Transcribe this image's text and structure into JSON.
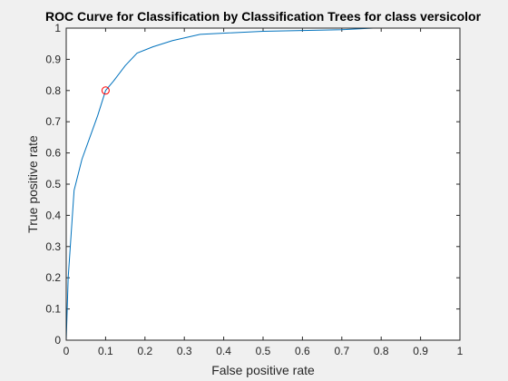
{
  "chart_data": {
    "type": "line",
    "title": "ROC Curve for Classification by Classification Trees for class versicolor",
    "xlabel": "False positive rate",
    "ylabel": "True positive rate",
    "xlim": [
      0,
      1
    ],
    "ylim": [
      0,
      1
    ],
    "xticks": [
      "0",
      "0.1",
      "0.2",
      "0.3",
      "0.4",
      "0.5",
      "0.6",
      "0.7",
      "0.8",
      "0.9",
      "1"
    ],
    "yticks": [
      "0",
      "0.1",
      "0.2",
      "0.3",
      "0.4",
      "0.5",
      "0.6",
      "0.7",
      "0.8",
      "0.9",
      "1"
    ],
    "grid": false,
    "series": [
      {
        "color": "#0072bd",
        "x": [
          0,
          0.005,
          0.02,
          0.04,
          0.06,
          0.08,
          0.1,
          0.12,
          0.15,
          0.18,
          0.22,
          0.27,
          0.34,
          0.5,
          0.7,
          0.78,
          1.0
        ],
        "y": [
          0,
          0.2,
          0.48,
          0.58,
          0.65,
          0.72,
          0.8,
          0.83,
          0.88,
          0.92,
          0.94,
          0.96,
          0.98,
          0.99,
          0.995,
          1.0,
          1.0
        ]
      }
    ],
    "marker": {
      "x": 0.1,
      "y": 0.8,
      "color": "#ff0000",
      "shape": "circle"
    }
  }
}
